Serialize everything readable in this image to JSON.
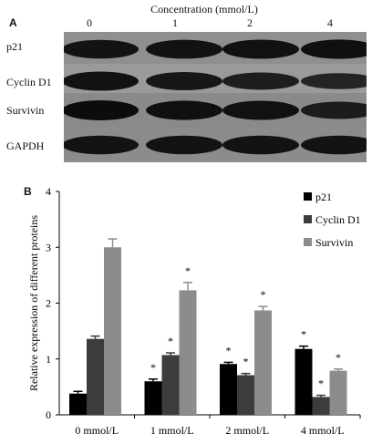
{
  "panel_a": {
    "letter": "A",
    "title": "Concentration (mmol/L)",
    "lanes": [
      "0",
      "1",
      "2",
      "4"
    ],
    "rows": [
      {
        "label": "p21",
        "bg": "#8f8f8f",
        "intensity": [
          0.85,
          0.88,
          0.9,
          0.92
        ]
      },
      {
        "label": "Cyclin D1",
        "bg": "#9a9a9a",
        "intensity": [
          0.9,
          0.8,
          0.7,
          0.55
        ]
      },
      {
        "label": "Survivin",
        "bg": "#8a8a8a",
        "intensity": [
          1.0,
          0.92,
          0.9,
          0.7
        ]
      },
      {
        "label": "GAPDH",
        "bg": "#8c8c8c",
        "intensity": [
          0.85,
          0.85,
          0.85,
          0.85
        ]
      }
    ]
  },
  "panel_b": {
    "letter": "B"
  },
  "chart_data": {
    "type": "bar",
    "categories": [
      "0 mmol/L",
      "1 mmol/L",
      "2 mmol/L",
      "4 mmol/L"
    ],
    "series": [
      {
        "name": "p21",
        "color": "#000000",
        "values": [
          0.38,
          0.6,
          0.91,
          1.18
        ],
        "errors": [
          0.04,
          0.04,
          0.03,
          0.05
        ],
        "significant": [
          false,
          true,
          true,
          true
        ]
      },
      {
        "name": "Cyclin D1",
        "color": "#3c3c3c",
        "values": [
          1.36,
          1.07,
          0.71,
          0.32
        ],
        "errors": [
          0.05,
          0.04,
          0.03,
          0.03
        ],
        "significant": [
          false,
          true,
          true,
          true
        ]
      },
      {
        "name": "Survivin",
        "color": "#8c8c8c",
        "values": [
          3.0,
          2.23,
          1.87,
          0.79
        ],
        "errors": [
          0.15,
          0.14,
          0.07,
          0.03
        ],
        "significant": [
          false,
          true,
          true,
          true
        ]
      }
    ],
    "ylabel": "Relative expression of different proteins",
    "xlabel": "",
    "ylim": [
      0,
      4
    ],
    "yticks": [
      "0",
      "1",
      "2",
      "3",
      "4"
    ],
    "significance_marker": "*",
    "legend_position": "top-right",
    "grid": false
  }
}
